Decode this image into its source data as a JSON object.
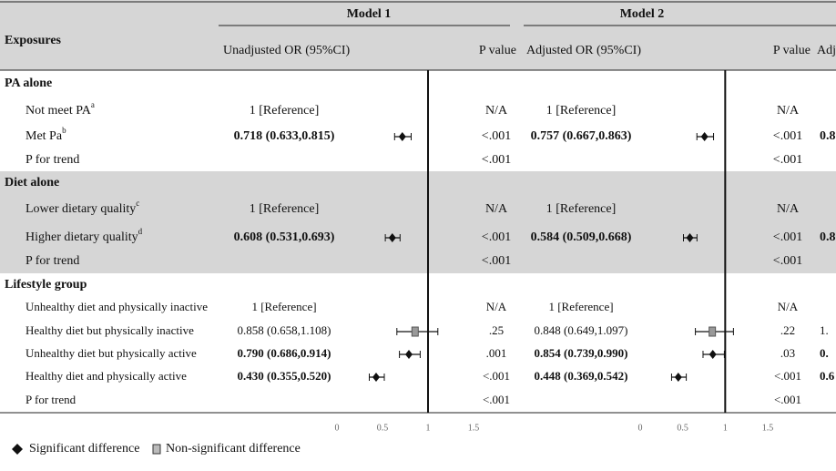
{
  "header": {
    "exposures": "Exposures",
    "model1": "Model 1",
    "model2": "Model 2",
    "m1_or": "Unadjusted OR (95%CI)",
    "m1_p": "P value",
    "m2_or": "Adjusted OR (95%CI)",
    "m2_p": "P value",
    "m3": "Adj"
  },
  "sections": [
    {
      "title": "PA alone",
      "shaded": false,
      "rows": [
        {
          "label": "Not meet PA",
          "sup": "a",
          "m1": {
            "text": "1 [Reference]"
          },
          "p1": "N/A",
          "m2": {
            "text": "1 [Reference]"
          },
          "p2": "N/A"
        },
        {
          "label": "Met Pa",
          "sup": "b",
          "m1": {
            "text": "0.718 (0.633,0.815)",
            "bold": true,
            "sig": true,
            "or": 0.718,
            "lo": 0.633,
            "hi": 0.815
          },
          "p1": "<.001",
          "m2": {
            "text": "0.757 (0.667,0.863)",
            "bold": true,
            "sig": true,
            "or": 0.757,
            "lo": 0.667,
            "hi": 0.863
          },
          "p2": "<.001",
          "m3": "0.8"
        },
        {
          "label": "P for trend",
          "p1": "<.001",
          "p2": "<.001"
        }
      ]
    },
    {
      "title": "Diet alone",
      "shaded": true,
      "rows": [
        {
          "label": "Lower dietary quality",
          "sup": "c",
          "m1": {
            "text": "1 [Reference]"
          },
          "p1": "N/A",
          "m2": {
            "text": "1 [Reference]"
          },
          "p2": "N/A"
        },
        {
          "label": "Higher dietary quality",
          "sup": "d",
          "m1": {
            "text": "0.608 (0.531,0.693)",
            "bold": true,
            "sig": true,
            "or": 0.608,
            "lo": 0.531,
            "hi": 0.693
          },
          "p1": "<.001",
          "m2": {
            "text": "0.584 (0.509,0.668)",
            "bold": true,
            "sig": true,
            "or": 0.584,
            "lo": 0.509,
            "hi": 0.668
          },
          "p2": "<.001",
          "m3": "0.8"
        },
        {
          "label": "P for trend",
          "p1": "<.001",
          "p2": "<.001"
        }
      ]
    },
    {
      "title": "Lifestyle group",
      "shaded": false,
      "rows": [
        {
          "label": "Unhealthy diet and physically inactive",
          "m1": {
            "text": "1 [Reference]"
          },
          "p1": "N/A",
          "m2": {
            "text": "1 [Reference]"
          },
          "p2": "N/A"
        },
        {
          "label": "Healthy diet but physically inactive",
          "m1": {
            "text": "0.858 (0.658,1.108)",
            "sig": false,
            "or": 0.858,
            "lo": 0.658,
            "hi": 1.108
          },
          "p1": ".25",
          "m2": {
            "text": "0.848 (0.649,1.097)",
            "sig": false,
            "or": 0.848,
            "lo": 0.649,
            "hi": 1.097
          },
          "p2": ".22",
          "m3": "1."
        },
        {
          "label": "Unhealthy diet but physically active",
          "m1": {
            "text": "0.790 (0.686,0.914)",
            "bold": true,
            "sig": true,
            "or": 0.79,
            "lo": 0.686,
            "hi": 0.914
          },
          "p1": ".001",
          "m2": {
            "text": "0.854 (0.739,0.990)",
            "bold": true,
            "sig": true,
            "or": 0.854,
            "lo": 0.739,
            "hi": 0.99
          },
          "p2": ".03",
          "m3": "0."
        },
        {
          "label": "Healthy diet and physically active",
          "m1": {
            "text": "0.430 (0.355,0.520)",
            "bold": true,
            "sig": true,
            "or": 0.43,
            "lo": 0.355,
            "hi": 0.52
          },
          "p1": "<.001",
          "m2": {
            "text": "0.448 (0.369,0.542)",
            "bold": true,
            "sig": true,
            "or": 0.448,
            "lo": 0.369,
            "hi": 0.542
          },
          "p2": "<.001",
          "m3": "0.6"
        },
        {
          "label": "P for trend",
          "p1": "<.001",
          "p2": "<.001"
        }
      ]
    }
  ],
  "plot": {
    "xlim": [
      0,
      1.5
    ],
    "ticks": [
      0,
      0.5,
      1,
      1.5
    ],
    "reference": 1
  },
  "legend": {
    "significant": "Significant difference",
    "nonsignificant": "Non-significant difference"
  }
}
